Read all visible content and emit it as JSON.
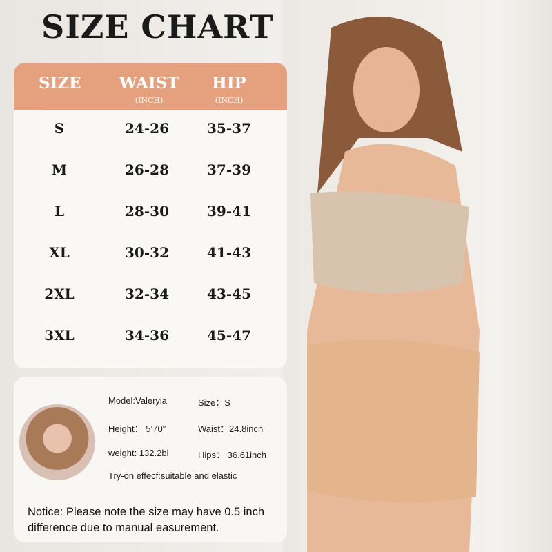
{
  "title": "SIZE CHART",
  "table": {
    "headers": [
      {
        "label": "SIZE",
        "unit": ""
      },
      {
        "label": "WAIST",
        "unit": "(INCH)"
      },
      {
        "label": "HIP",
        "unit": "(INCH)"
      }
    ],
    "rows": [
      [
        "S",
        "24-26",
        "35-37"
      ],
      [
        "M",
        "26-28",
        "37-39"
      ],
      [
        "L",
        "28-30",
        "39-41"
      ],
      [
        "XL",
        "30-32",
        "41-43"
      ],
      [
        "2XL",
        "32-34",
        "43-45"
      ],
      [
        "3XL",
        "34-36",
        "45-47"
      ]
    ]
  },
  "model_info": {
    "model": "Model:Valeryia",
    "size": "Size：S",
    "height": "Height：  5’70″",
    "waist": "Waist：24.8inch",
    "weight": "weight:  132.2bl",
    "hips": "Hips：  36.61inch",
    "tryon": "Try-on effecf:suitable and elastic"
  },
  "notice": "Notice: Please note the size may have 0.5 inch difference due to manual  easurement.",
  "colors": {
    "header": "#e5a07d",
    "skin": "#e8b894"
  }
}
